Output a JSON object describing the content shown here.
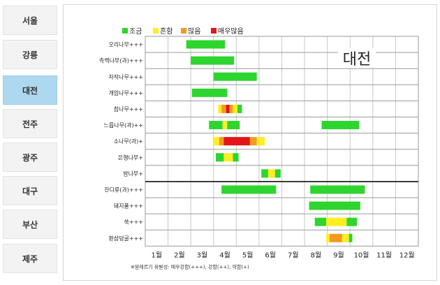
{
  "sidebar": {
    "cities": [
      {
        "label": "서울",
        "active": false
      },
      {
        "label": "강릉",
        "active": false
      },
      {
        "label": "대전",
        "active": true
      },
      {
        "label": "전주",
        "active": false
      },
      {
        "label": "광주",
        "active": false
      },
      {
        "label": "대구",
        "active": false
      },
      {
        "label": "부산",
        "active": false
      },
      {
        "label": "제주",
        "active": false
      }
    ]
  },
  "region_label": "대전",
  "colors": {
    "low": "#2ed52e",
    "moderate": "#ffee22",
    "high": "#f29b1e",
    "very_high": "#e3141a"
  },
  "legend": [
    {
      "label": "조금",
      "level": "low"
    },
    {
      "label": "흔함",
      "level": "moderate"
    },
    {
      "label": "많음",
      "level": "high"
    },
    {
      "label": "매우많음",
      "level": "very_high"
    }
  ],
  "note": "※알레르기 유발성: 매우강함(+++), 강함(++), 약함(+)",
  "chart_data": {
    "type": "bar",
    "x_unit": "month",
    "xlim": [
      0.5,
      12.5
    ],
    "months": [
      "1월",
      "2월",
      "3월",
      "4월",
      "5월",
      "6월",
      "7월",
      "8월",
      "9월",
      "10월",
      "11월",
      "12월"
    ],
    "rows": [
      {
        "name": "오리나무+++",
        "segments": [
          {
            "start": 2.3,
            "end": 4.0,
            "level": "low"
          }
        ]
      },
      {
        "name": "측백나무(과)+++",
        "segments": [
          {
            "start": 2.5,
            "end": 4.4,
            "level": "low"
          }
        ]
      },
      {
        "name": "자작나무+++",
        "segments": [
          {
            "start": 3.5,
            "end": 5.4,
            "level": "low"
          }
        ]
      },
      {
        "name": "개암나무+++",
        "segments": [
          {
            "start": 2.55,
            "end": 4.1,
            "level": "low"
          }
        ]
      },
      {
        "name": "참나무+++",
        "segments": [
          {
            "start": 3.7,
            "end": 3.85,
            "level": "moderate"
          },
          {
            "start": 3.85,
            "end": 4.05,
            "level": "high"
          },
          {
            "start": 4.05,
            "end": 4.2,
            "level": "very_high"
          },
          {
            "start": 4.2,
            "end": 4.35,
            "level": "high"
          },
          {
            "start": 4.35,
            "end": 4.55,
            "level": "moderate"
          },
          {
            "start": 4.55,
            "end": 4.75,
            "level": "low"
          }
        ]
      },
      {
        "name": "느릅나무(과)++",
        "segments": [
          {
            "start": 3.3,
            "end": 3.9,
            "level": "low"
          },
          {
            "start": 3.9,
            "end": 4.1,
            "level": "moderate"
          },
          {
            "start": 4.1,
            "end": 4.65,
            "level": "low"
          },
          {
            "start": 8.25,
            "end": 9.9,
            "level": "low"
          }
        ]
      },
      {
        "name": "소나무(과)+",
        "segments": [
          {
            "start": 3.5,
            "end": 3.75,
            "level": "moderate"
          },
          {
            "start": 3.75,
            "end": 3.95,
            "level": "high"
          },
          {
            "start": 3.95,
            "end": 5.1,
            "level": "very_high"
          },
          {
            "start": 5.1,
            "end": 5.4,
            "level": "high"
          },
          {
            "start": 5.4,
            "end": 5.75,
            "level": "moderate"
          }
        ]
      },
      {
        "name": "은행나무+",
        "segments": [
          {
            "start": 3.6,
            "end": 3.95,
            "level": "low"
          },
          {
            "start": 3.95,
            "end": 4.35,
            "level": "moderate"
          },
          {
            "start": 4.35,
            "end": 4.6,
            "level": "low"
          }
        ]
      },
      {
        "name": "밤나무+",
        "segments": [
          {
            "start": 5.6,
            "end": 5.9,
            "level": "low"
          },
          {
            "start": 5.9,
            "end": 6.2,
            "level": "moderate"
          },
          {
            "start": 6.2,
            "end": 6.45,
            "level": "low"
          }
        ]
      },
      {
        "name": "잔디류(과)+++",
        "segments": [
          {
            "start": 3.85,
            "end": 6.25,
            "level": "low"
          },
          {
            "start": 7.75,
            "end": 10.15,
            "level": "low"
          }
        ]
      },
      {
        "name": "돼지풀+++",
        "segments": [
          {
            "start": 7.7,
            "end": 9.95,
            "level": "low"
          }
        ]
      },
      {
        "name": "쑥+++",
        "segments": [
          {
            "start": 7.95,
            "end": 8.45,
            "level": "low"
          },
          {
            "start": 8.45,
            "end": 9.35,
            "level": "moderate"
          },
          {
            "start": 9.35,
            "end": 9.8,
            "level": "low"
          }
        ]
      },
      {
        "name": "환삼덩굴+++",
        "segments": [
          {
            "start": 8.45,
            "end": 8.6,
            "level": "moderate"
          },
          {
            "start": 8.6,
            "end": 9.15,
            "level": "high"
          },
          {
            "start": 9.15,
            "end": 9.45,
            "level": "moderate"
          },
          {
            "start": 9.45,
            "end": 9.6,
            "level": "low"
          }
        ]
      }
    ]
  }
}
